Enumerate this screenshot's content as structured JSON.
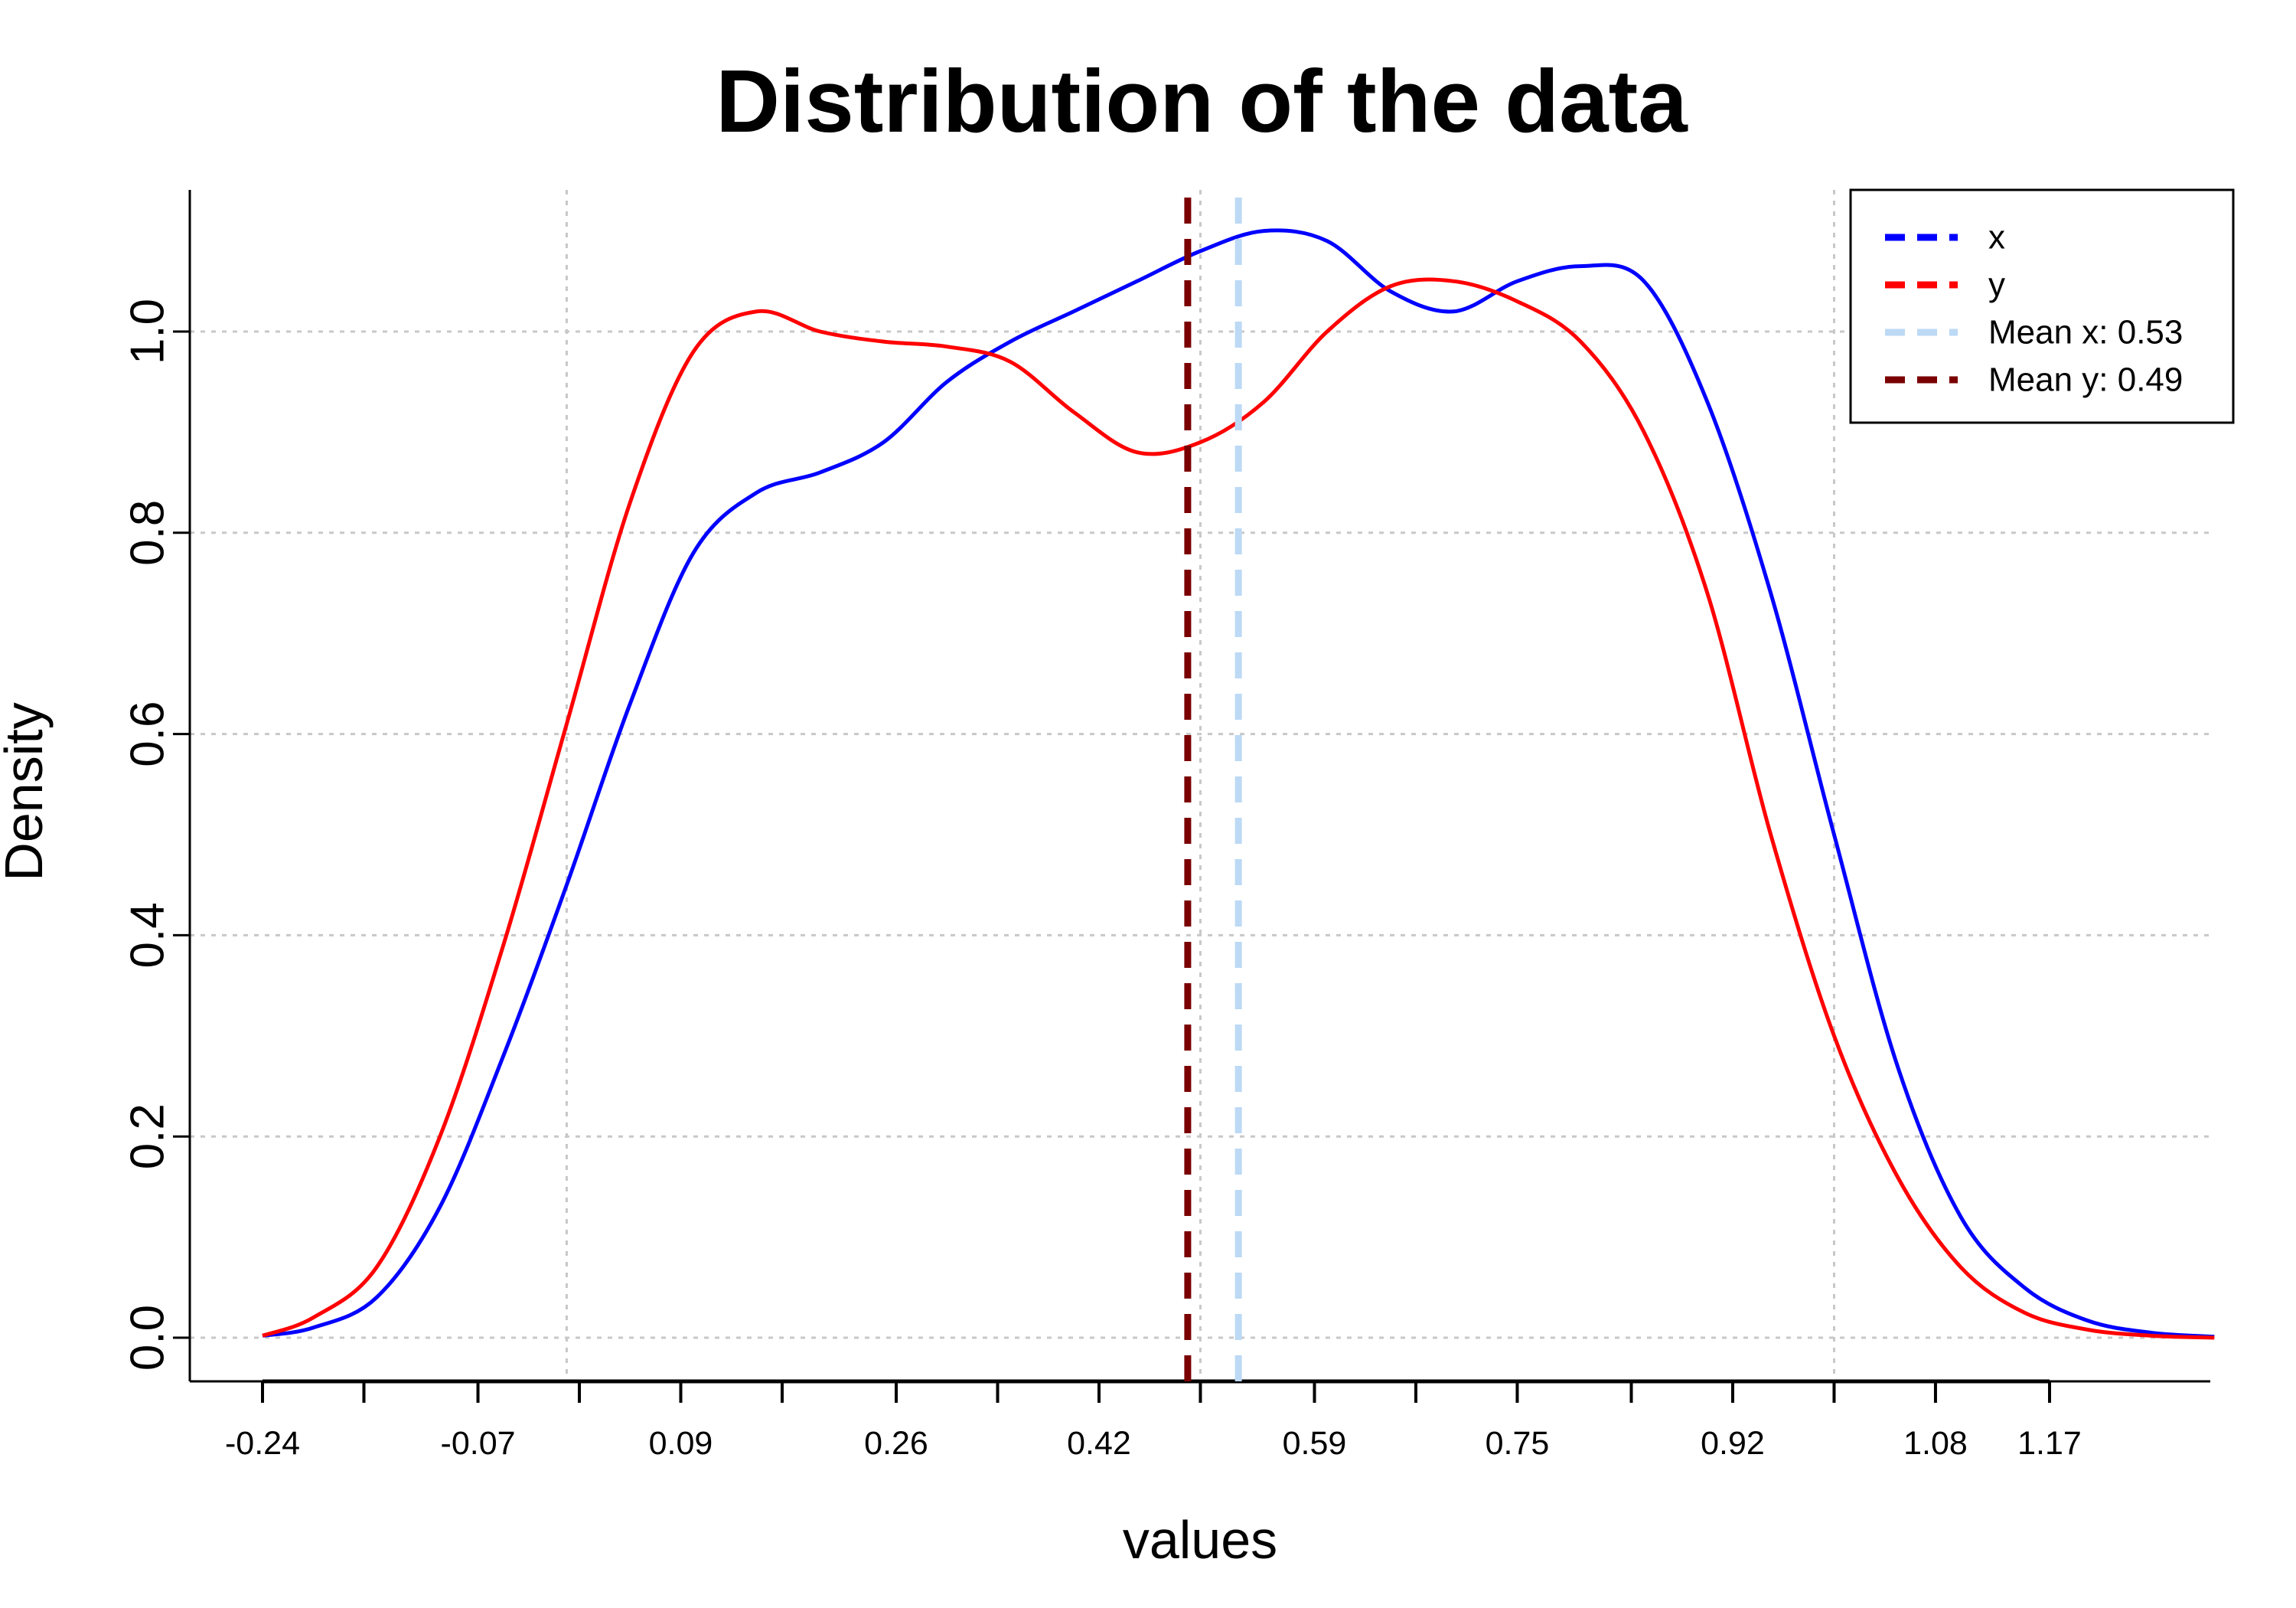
{
  "chart_data": {
    "type": "line",
    "title": "Distribution of the data",
    "xlabel": "values",
    "ylabel": "Density",
    "xlim": [
      -0.24,
      1.33
    ],
    "ylim": [
      0.0,
      1.1
    ],
    "grid": true,
    "legend_position": "top-right",
    "x_ticks": [
      {
        "value": -0.24,
        "label": "-0.24"
      },
      {
        "value": -0.07,
        "label": "-0.07"
      },
      {
        "value": 0.09,
        "label": "0.09"
      },
      {
        "value": 0.26,
        "label": "0.26"
      },
      {
        "value": 0.42,
        "label": "0.42"
      },
      {
        "value": 0.59,
        "label": "0.59"
      },
      {
        "value": 0.75,
        "label": "0.75"
      },
      {
        "value": 0.92,
        "label": "0.92"
      },
      {
        "value": 1.08,
        "label": "1.08"
      },
      {
        "value": 1.17,
        "label": "1.17"
      }
    ],
    "x_minor_ticks": [
      -0.16,
      0.01,
      0.17,
      0.34,
      0.5,
      0.67,
      0.84,
      1.0
    ],
    "x_grid": [
      0.0,
      0.5,
      1.0
    ],
    "y_ticks": [
      {
        "value": 0.0,
        "label": "0.0"
      },
      {
        "value": 0.2,
        "label": "0.2"
      },
      {
        "value": 0.4,
        "label": "0.4"
      },
      {
        "value": 0.6,
        "label": "0.6"
      },
      {
        "value": 0.8,
        "label": "0.8"
      },
      {
        "value": 1.0,
        "label": "1.0"
      }
    ],
    "series": [
      {
        "name": "x",
        "color": "#0000ff",
        "x": [
          -0.24,
          -0.2,
          -0.15,
          -0.1,
          -0.05,
          0.0,
          0.05,
          0.1,
          0.15,
          0.2,
          0.25,
          0.3,
          0.35,
          0.4,
          0.45,
          0.5,
          0.55,
          0.6,
          0.65,
          0.7,
          0.75,
          0.8,
          0.85,
          0.9,
          0.95,
          1.0,
          1.05,
          1.1,
          1.15,
          1.2,
          1.25,
          1.3
        ],
        "y": [
          0.002,
          0.01,
          0.04,
          0.13,
          0.28,
          0.45,
          0.63,
          0.78,
          0.84,
          0.86,
          0.89,
          0.95,
          0.99,
          1.02,
          1.05,
          1.08,
          1.1,
          1.09,
          1.04,
          1.02,
          1.05,
          1.065,
          1.05,
          0.93,
          0.74,
          0.5,
          0.27,
          0.12,
          0.05,
          0.017,
          0.005,
          0.001
        ]
      },
      {
        "name": "y",
        "color": "#ff0000",
        "x": [
          -0.24,
          -0.2,
          -0.15,
          -0.1,
          -0.05,
          0.0,
          0.05,
          0.1,
          0.15,
          0.2,
          0.25,
          0.3,
          0.35,
          0.4,
          0.45,
          0.5,
          0.55,
          0.6,
          0.65,
          0.7,
          0.75,
          0.8,
          0.85,
          0.9,
          0.95,
          1.0,
          1.05,
          1.1,
          1.15,
          1.2,
          1.25,
          1.3
        ],
        "y": [
          0.002,
          0.02,
          0.07,
          0.2,
          0.39,
          0.61,
          0.83,
          0.98,
          1.02,
          1.0,
          0.99,
          0.985,
          0.97,
          0.92,
          0.88,
          0.89,
          0.93,
          1.0,
          1.045,
          1.05,
          1.03,
          0.99,
          0.9,
          0.74,
          0.5,
          0.3,
          0.16,
          0.07,
          0.025,
          0.008,
          0.002,
          0.0
        ]
      }
    ],
    "mean_lines": [
      {
        "label": "Mean x: 0.53",
        "value": 0.53,
        "color": "#bcd9f5"
      },
      {
        "label": "Mean y: 0.49",
        "value": 0.49,
        "color": "#7a0000"
      }
    ],
    "legend": [
      {
        "label": "x",
        "color": "#0000ff"
      },
      {
        "label": "y",
        "color": "#ff0000"
      },
      {
        "label": "Mean x: 0.53",
        "color": "#bcd9f5"
      },
      {
        "label": "Mean y: 0.49",
        "color": "#7a0000"
      }
    ]
  }
}
